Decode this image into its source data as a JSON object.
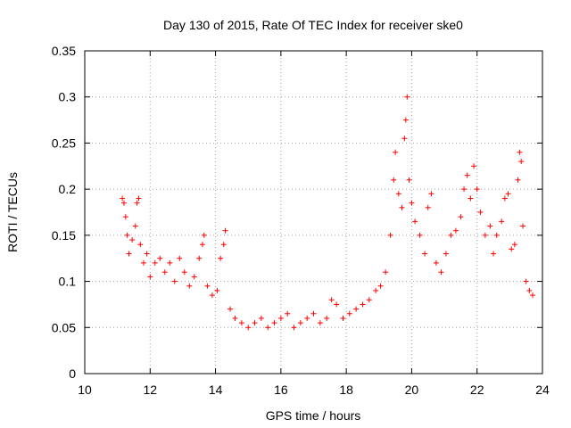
{
  "chart_data": {
    "type": "scatter",
    "title": "Day 130 of 2015, Rate Of TEC Index for receiver ske0",
    "xlabel": "GPS time / hours",
    "ylabel": "ROTI / TECUs",
    "xlim": [
      10,
      24
    ],
    "ylim": [
      0,
      0.35
    ],
    "xticks": [
      10,
      12,
      14,
      16,
      18,
      20,
      22,
      24
    ],
    "xtick_labels": [
      "10",
      "12",
      "14",
      "16",
      "18",
      "20",
      "22",
      "24"
    ],
    "yticks": [
      0,
      0.05,
      0.1,
      0.15,
      0.2,
      0.25,
      0.3,
      0.35
    ],
    "ytick_labels": [
      "0",
      "0.05",
      "0.1",
      "0.15",
      "0.2",
      "0.25",
      "0.3",
      "0.35"
    ],
    "grid": true,
    "marker": "+",
    "color": "#ff0000",
    "series": [
      {
        "values_note": "",
        "points": [
          [
            11.15,
            0.19
          ],
          [
            11.2,
            0.185
          ],
          [
            11.25,
            0.17
          ],
          [
            11.3,
            0.15
          ],
          [
            11.35,
            0.13
          ],
          [
            11.45,
            0.145
          ],
          [
            11.55,
            0.16
          ],
          [
            11.6,
            0.185
          ],
          [
            11.65,
            0.19
          ],
          [
            11.7,
            0.14
          ],
          [
            11.8,
            0.12
          ],
          [
            11.9,
            0.13
          ],
          [
            12.0,
            0.105
          ],
          [
            12.15,
            0.12
          ],
          [
            12.3,
            0.125
          ],
          [
            12.45,
            0.11
          ],
          [
            12.6,
            0.12
          ],
          [
            12.75,
            0.1
          ],
          [
            12.9,
            0.125
          ],
          [
            13.05,
            0.11
          ],
          [
            13.2,
            0.095
          ],
          [
            13.35,
            0.105
          ],
          [
            13.5,
            0.125
          ],
          [
            13.6,
            0.14
          ],
          [
            13.65,
            0.15
          ],
          [
            13.75,
            0.095
          ],
          [
            13.9,
            0.085
          ],
          [
            14.05,
            0.09
          ],
          [
            14.15,
            0.125
          ],
          [
            14.25,
            0.14
          ],
          [
            14.3,
            0.155
          ],
          [
            14.45,
            0.07
          ],
          [
            14.6,
            0.06
          ],
          [
            14.8,
            0.055
          ],
          [
            15.0,
            0.05
          ],
          [
            15.2,
            0.055
          ],
          [
            15.4,
            0.06
          ],
          [
            15.6,
            0.05
          ],
          [
            15.8,
            0.055
          ],
          [
            16.0,
            0.06
          ],
          [
            16.2,
            0.065
          ],
          [
            16.4,
            0.05
          ],
          [
            16.6,
            0.055
          ],
          [
            16.8,
            0.06
          ],
          [
            17.0,
            0.065
          ],
          [
            17.2,
            0.055
          ],
          [
            17.4,
            0.06
          ],
          [
            17.55,
            0.08
          ],
          [
            17.7,
            0.075
          ],
          [
            17.9,
            0.06
          ],
          [
            18.1,
            0.065
          ],
          [
            18.3,
            0.07
          ],
          [
            18.5,
            0.075
          ],
          [
            18.7,
            0.08
          ],
          [
            18.9,
            0.09
          ],
          [
            19.05,
            0.095
          ],
          [
            19.2,
            0.11
          ],
          [
            19.35,
            0.15
          ],
          [
            19.45,
            0.21
          ],
          [
            19.5,
            0.24
          ],
          [
            19.6,
            0.195
          ],
          [
            19.7,
            0.18
          ],
          [
            19.78,
            0.255
          ],
          [
            19.82,
            0.275
          ],
          [
            19.86,
            0.3
          ],
          [
            19.92,
            0.21
          ],
          [
            20.0,
            0.185
          ],
          [
            20.1,
            0.165
          ],
          [
            20.25,
            0.15
          ],
          [
            20.4,
            0.13
          ],
          [
            20.5,
            0.18
          ],
          [
            20.6,
            0.195
          ],
          [
            20.75,
            0.12
          ],
          [
            20.9,
            0.11
          ],
          [
            21.05,
            0.13
          ],
          [
            21.2,
            0.15
          ],
          [
            21.35,
            0.155
          ],
          [
            21.5,
            0.17
          ],
          [
            21.6,
            0.2
          ],
          [
            21.7,
            0.215
          ],
          [
            21.8,
            0.19
          ],
          [
            21.9,
            0.225
          ],
          [
            22.0,
            0.2
          ],
          [
            22.1,
            0.175
          ],
          [
            22.25,
            0.15
          ],
          [
            22.4,
            0.16
          ],
          [
            22.5,
            0.13
          ],
          [
            22.6,
            0.15
          ],
          [
            22.75,
            0.165
          ],
          [
            22.85,
            0.19
          ],
          [
            22.95,
            0.195
          ],
          [
            23.05,
            0.135
          ],
          [
            23.15,
            0.14
          ],
          [
            23.25,
            0.21
          ],
          [
            23.3,
            0.24
          ],
          [
            23.35,
            0.23
          ],
          [
            23.4,
            0.16
          ],
          [
            23.5,
            0.1
          ],
          [
            23.6,
            0.09
          ],
          [
            23.7,
            0.085
          ]
        ]
      }
    ]
  }
}
